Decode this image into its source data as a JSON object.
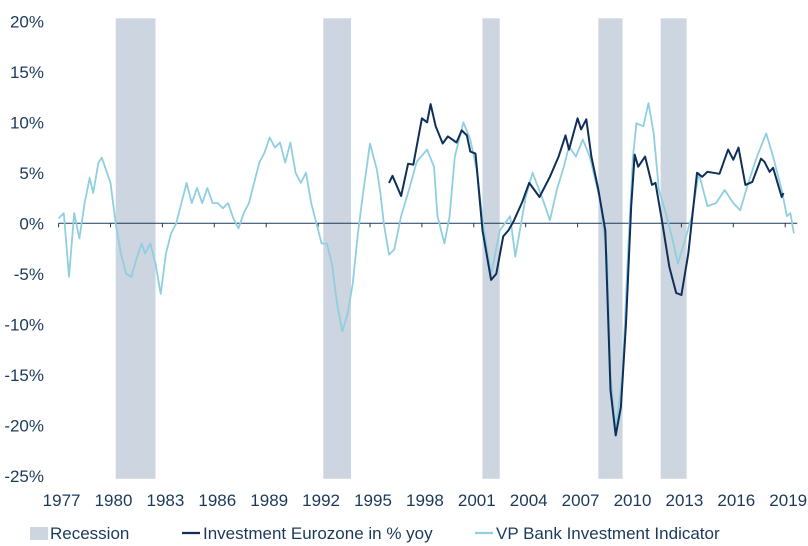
{
  "chart_data": {
    "type": "line",
    "title": "",
    "xlabel": "",
    "ylabel": "",
    "xlim": [
      1977,
      2019.6
    ],
    "ylim": [
      -25,
      20
    ],
    "grid": false,
    "legend_position": "bottom",
    "x_ticks": [
      "1977",
      "1980",
      "1983",
      "1986",
      "1989",
      "1992",
      "1995",
      "1998",
      "2001",
      "2004",
      "2007",
      "2010",
      "2013",
      "2016",
      "2019"
    ],
    "y_ticks": [
      "20%",
      "15%",
      "10%",
      "5%",
      "0%",
      "-5%",
      "-10%",
      "-15%",
      "-20%",
      "-25%"
    ],
    "y_tick_values": [
      20,
      15,
      10,
      5,
      0,
      -5,
      -10,
      -15,
      -20,
      -25
    ],
    "colors": {
      "recession": "#ccd5e0",
      "investment": "#0f2f59",
      "indicator": "#8fcfe0",
      "text": "#1b3a5b"
    },
    "recessions": {
      "name": "Recession",
      "periods": [
        [
          1980.3,
          1982.6
        ],
        [
          1992.3,
          1993.9
        ],
        [
          2001.5,
          2002.5
        ],
        [
          2008.2,
          2009.6
        ],
        [
          2011.8,
          2013.3
        ]
      ]
    },
    "series": [
      {
        "name": "Investment Eurozone in % yoy",
        "x": [
          1996.1,
          1996.3,
          1996.8,
          1997.2,
          1997.5,
          1998.0,
          1998.3,
          1998.5,
          1998.8,
          1999.2,
          1999.5,
          2000.0,
          2000.3,
          2000.6,
          2000.8,
          2001.1,
          2001.5,
          2002.0,
          2002.3,
          2002.7,
          2003.0,
          2003.3,
          2003.8,
          2004.2,
          2004.8,
          2005.4,
          2005.9,
          2006.3,
          2006.5,
          2007.0,
          2007.2,
          2007.5,
          2007.8,
          2008.2,
          2008.6,
          2008.9,
          2009.2,
          2009.5,
          2009.8,
          2010.1,
          2010.3,
          2010.5,
          2010.9,
          2011.3,
          2011.5,
          2011.9,
          2012.3,
          2012.7,
          2013.0,
          2013.4,
          2013.9,
          2014.2,
          2014.5,
          2015.2,
          2015.7,
          2016.0,
          2016.3,
          2016.7,
          2017.1,
          2017.6,
          2017.8,
          2018.1,
          2018.3,
          2018.8,
          2018.9
        ],
        "y": [
          4,
          4.7,
          2.7,
          5.9,
          5.8,
          10.4,
          10,
          11.8,
          9.6,
          7.9,
          8.6,
          8,
          9.2,
          8.7,
          7.1,
          6.9,
          -0.7,
          -5.6,
          -5,
          -1.3,
          -0.7,
          0.2,
          2.1,
          4,
          2.6,
          4.6,
          6.6,
          8.7,
          7.3,
          10.4,
          9.3,
          10.3,
          6.6,
          3.3,
          -0.7,
          -16.5,
          -21,
          -18.2,
          -9.9,
          1.7,
          6.8,
          5.6,
          6.6,
          3.8,
          4,
          0,
          -4.3,
          -6.9,
          -7.1,
          -3,
          5,
          4.6,
          5.1,
          4.9,
          7.3,
          6.3,
          7.5,
          3.8,
          4.1,
          6.4,
          6.1,
          5.1,
          5.5,
          2.6,
          3
        ]
      },
      {
        "name": "VP Bank Investment Indicator",
        "x": [
          1977.0,
          1977.3,
          1977.6,
          1977.9,
          1978.2,
          1978.5,
          1978.8,
          1979.0,
          1979.3,
          1979.5,
          1979.8,
          1980.0,
          1980.3,
          1980.6,
          1980.9,
          1981.2,
          1981.5,
          1981.8,
          1982.0,
          1982.3,
          1982.6,
          1982.9,
          1983.2,
          1983.5,
          1983.8,
          1984.1,
          1984.4,
          1984.7,
          1985.0,
          1985.3,
          1985.6,
          1985.9,
          1986.2,
          1986.5,
          1986.8,
          1987.1,
          1987.4,
          1987.7,
          1988.0,
          1988.3,
          1988.6,
          1988.9,
          1989.2,
          1989.5,
          1989.8,
          1990.1,
          1990.4,
          1990.7,
          1991.0,
          1991.3,
          1991.6,
          1991.9,
          1992.2,
          1992.5,
          1992.8,
          1993.1,
          1993.4,
          1993.7,
          1994.0,
          1994.3,
          1994.6,
          1995.0,
          1995.4,
          1995.6,
          1995.8,
          1996.1,
          1996.4,
          1996.8,
          1997.3,
          1997.7,
          1998.3,
          1998.7,
          1998.9,
          1999.3,
          1999.6,
          1999.9,
          2000.4,
          2000.8,
          2001.2,
          2001.5,
          2002.0,
          2002.5,
          2003.1,
          2003.4,
          2004.0,
          2004.4,
          2005.0,
          2005.4,
          2005.8,
          2006.2,
          2006.5,
          2006.9,
          2007.3,
          2007.7,
          2008.3,
          2008.7,
          2008.9,
          2009.2,
          2009.6,
          2009.9,
          2010.2,
          2010.4,
          2010.8,
          2011.1,
          2011.4,
          2011.7,
          2012.1,
          2012.5,
          2012.8,
          2013.2,
          2013.6,
          2014.0,
          2014.5,
          2015.0,
          2015.5,
          2016.0,
          2016.4,
          2016.8,
          2017.3,
          2017.9,
          2018.3,
          2018.8,
          2019.1,
          2019.3,
          2019.5
        ],
        "y": [
          0.5,
          1,
          -5.3,
          1,
          -1.5,
          2,
          4.5,
          3,
          6,
          6.5,
          5,
          4,
          0,
          -3,
          -5,
          -5.3,
          -3.5,
          -2,
          -3,
          -2,
          -4,
          -7,
          -3,
          -1,
          0,
          2,
          4,
          2,
          3.5,
          2,
          3.5,
          2,
          2,
          1.5,
          2,
          0.5,
          -0.5,
          1,
          2,
          4,
          6,
          7,
          8.5,
          7.5,
          8,
          6,
          8,
          5,
          4,
          5,
          2,
          0,
          -2,
          -2,
          -4,
          -8,
          -10.7,
          -9,
          -6,
          -1,
          3,
          7.9,
          5.3,
          3,
          0,
          -3.1,
          -2.6,
          0.7,
          3.6,
          6.1,
          7.3,
          5.6,
          0.7,
          -2,
          0.7,
          6.6,
          10,
          8.3,
          5,
          0.3,
          -5.1,
          -0.7,
          0.7,
          -3.3,
          2.6,
          5,
          2.3,
          0.3,
          3.3,
          5.6,
          7.6,
          6.6,
          8.3,
          6.6,
          2.3,
          -3.3,
          -14.9,
          -20.5,
          -14.9,
          -3.3,
          6.6,
          9.9,
          9.6,
          11.9,
          8.9,
          3.3,
          1,
          -1.7,
          -4,
          -1.7,
          0.7,
          5,
          1.7,
          2,
          3.3,
          2,
          1.3,
          3.6,
          6.3,
          8.9,
          6.6,
          3.3,
          0.7,
          1,
          -1
        ]
      }
    ]
  }
}
